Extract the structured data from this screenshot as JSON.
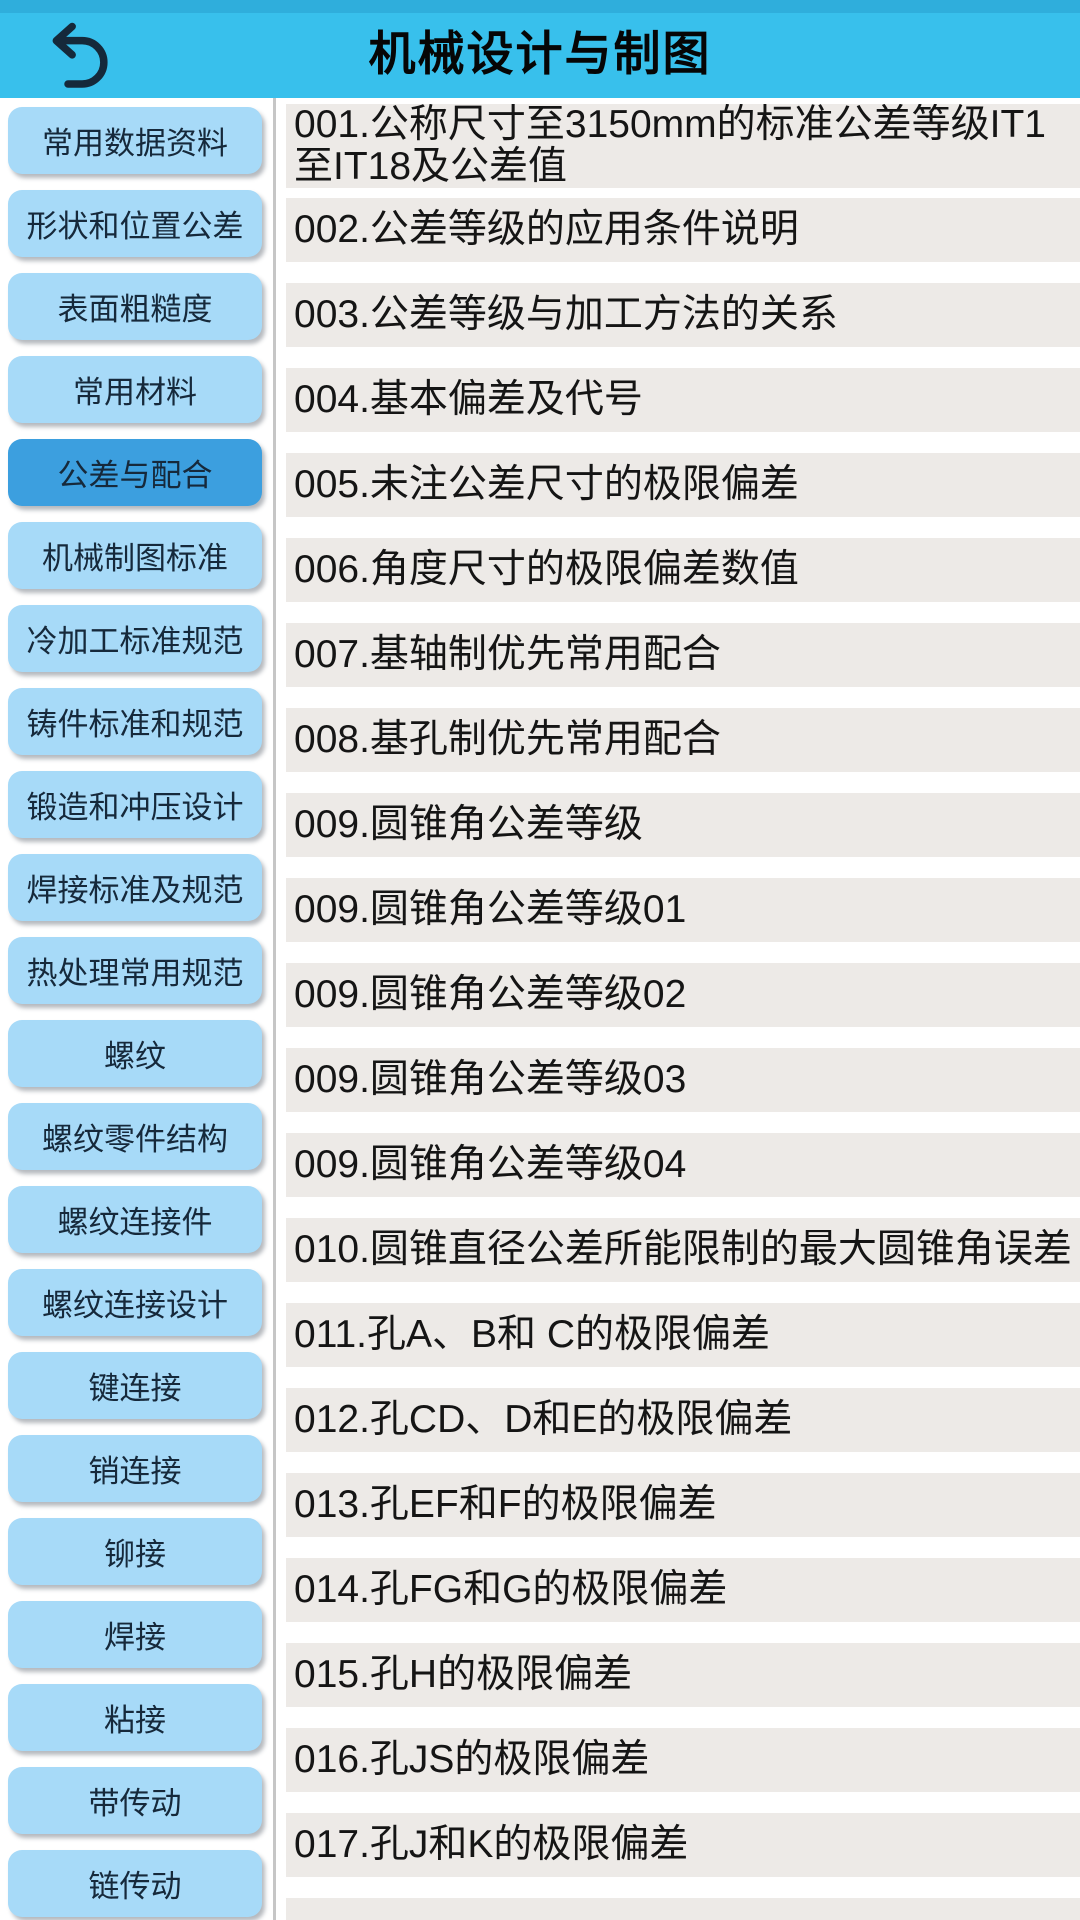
{
  "header": {
    "title": "机械设计与制图"
  },
  "colors": {
    "header_bg": "#38C0EC",
    "header_top_strip": "#2FAEDC",
    "sidebar_button": "#A7DAF8",
    "sidebar_button_selected": "#3C9FDF",
    "sidebar_text": "#16293B",
    "divider": "#C6C6C6",
    "list_item_bg": "#EDEAE7",
    "list_text": "#151515",
    "back_icon": "#15293A",
    "title_text": "#060606"
  },
  "sidebar": {
    "items": [
      {
        "label": "常用数据资料",
        "selected": false
      },
      {
        "label": "形状和位置公差",
        "selected": false
      },
      {
        "label": "表面粗糙度",
        "selected": false
      },
      {
        "label": "常用材料",
        "selected": false
      },
      {
        "label": "公差与配合",
        "selected": true
      },
      {
        "label": "机械制图标准",
        "selected": false
      },
      {
        "label": "冷加工标准规范",
        "selected": false
      },
      {
        "label": "铸件标准和规范",
        "selected": false
      },
      {
        "label": "锻造和冲压设计",
        "selected": false
      },
      {
        "label": "焊接标准及规范",
        "selected": false
      },
      {
        "label": "热处理常用规范",
        "selected": false
      },
      {
        "label": "螺纹",
        "selected": false
      },
      {
        "label": "螺纹零件结构",
        "selected": false
      },
      {
        "label": "螺纹连接件",
        "selected": false
      },
      {
        "label": "螺纹连接设计",
        "selected": false
      },
      {
        "label": "键连接",
        "selected": false
      },
      {
        "label": "销连接",
        "selected": false
      },
      {
        "label": "铆接",
        "selected": false
      },
      {
        "label": "焊接",
        "selected": false
      },
      {
        "label": "粘接",
        "selected": false
      },
      {
        "label": "带传动",
        "selected": false
      },
      {
        "label": "链传动",
        "selected": false
      }
    ]
  },
  "list": {
    "items": [
      {
        "label": "001.公称尺寸至3150mm的标准公差等级IT1至IT18及公差值"
      },
      {
        "label": "002.公差等级的应用条件说明"
      },
      {
        "label": "003.公差等级与加工方法的关系"
      },
      {
        "label": "004.基本偏差及代号"
      },
      {
        "label": "005.未注公差尺寸的极限偏差"
      },
      {
        "label": "006.角度尺寸的极限偏差数值"
      },
      {
        "label": "007.基轴制优先常用配合"
      },
      {
        "label": "008.基孔制优先常用配合"
      },
      {
        "label": "009.圆锥角公差等级"
      },
      {
        "label": "009.圆锥角公差等级01"
      },
      {
        "label": "009.圆锥角公差等级02"
      },
      {
        "label": "009.圆锥角公差等级03"
      },
      {
        "label": "009.圆锥角公差等级04"
      },
      {
        "label": "010.圆锥直径公差所能限制的最大圆锥角误差"
      },
      {
        "label": "011.孔A、B和 C的极限偏差"
      },
      {
        "label": "012.孔CD、D和E的极限偏差"
      },
      {
        "label": "013.孔EF和F的极限偏差"
      },
      {
        "label": "014.孔FG和G的极限偏差"
      },
      {
        "label": "015.孔H的极限偏差"
      },
      {
        "label": "016.孔JS的极限偏差"
      },
      {
        "label": "017.孔J和K的极限偏差"
      },
      {
        "label": ""
      }
    ]
  }
}
